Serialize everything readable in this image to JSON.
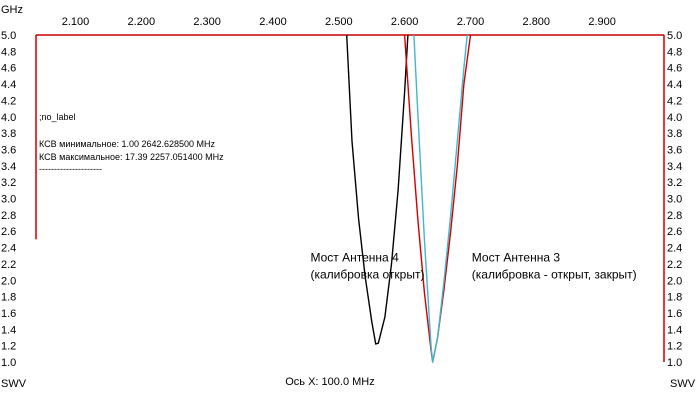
{
  "chart_data": {
    "type": "line",
    "x_unit": "GHz",
    "y_unit": "SWV",
    "xlim": [
      2.04,
      2.994
    ],
    "ylim": [
      1.0,
      5.0
    ],
    "x_ticks": [
      {
        "value": 2.1,
        "label": "2.100"
      },
      {
        "value": 2.2,
        "label": "2.200"
      },
      {
        "value": 2.3,
        "label": "2.300"
      },
      {
        "value": 2.4,
        "label": "2.400"
      },
      {
        "value": 2.5,
        "label": "2.500"
      },
      {
        "value": 2.6,
        "label": "2.600"
      },
      {
        "value": 2.7,
        "label": "2.700"
      },
      {
        "value": 2.8,
        "label": "2.800"
      },
      {
        "value": 2.9,
        "label": "2.900"
      }
    ],
    "y_ticks": [
      {
        "value": 1.0,
        "label": "1.0"
      },
      {
        "value": 1.2,
        "label": "1.2"
      },
      {
        "value": 1.4,
        "label": "1.4"
      },
      {
        "value": 1.6,
        "label": "1.6"
      },
      {
        "value": 1.8,
        "label": "1.8"
      },
      {
        "value": 2.0,
        "label": "2.0"
      },
      {
        "value": 2.2,
        "label": "2.2"
      },
      {
        "value": 2.4,
        "label": "2.4"
      },
      {
        "value": 2.6,
        "label": "2.6"
      },
      {
        "value": 2.8,
        "label": "2.8"
      },
      {
        "value": 3.0,
        "label": "3.0"
      },
      {
        "value": 3.2,
        "label": "3.2"
      },
      {
        "value": 3.4,
        "label": "3.4"
      },
      {
        "value": 3.6,
        "label": "3.6"
      },
      {
        "value": 3.8,
        "label": "3.8"
      },
      {
        "value": 4.0,
        "label": "4.0"
      },
      {
        "value": 4.2,
        "label": "4.2"
      },
      {
        "value": 4.4,
        "label": "4.4"
      },
      {
        "value": 4.6,
        "label": "4.6"
      },
      {
        "value": 4.8,
        "label": "4.8"
      },
      {
        "value": 5.0,
        "label": "5.0"
      }
    ],
    "xlabel": "Ось X: 100.0 MHz",
    "info_lines": [
      ";no_label",
      "КСВ минимальное: 1.00  2642.628500 MHz",
      "КСВ максимальное: 17.39  2257.051400 MHz",
      "---------------------"
    ],
    "series": [
      {
        "name": "Мост Антенна 4 (калибровка открыт)",
        "color": "#000000",
        "x": [
          2.512,
          2.52,
          2.53,
          2.54,
          2.55,
          2.556,
          2.56,
          2.57,
          2.58,
          2.59,
          2.6,
          2.605
        ],
        "y": [
          5.0,
          3.7,
          2.75,
          2.05,
          1.5,
          1.22,
          1.23,
          1.55,
          2.2,
          3.1,
          4.3,
          5.0
        ]
      },
      {
        "name": "Мост Антенна 3 (калибровка - открыт, закрыт)",
        "color": "#d00000",
        "x": [
          2.6,
          2.605,
          2.61,
          2.62,
          2.63,
          2.64,
          2.6426,
          2.65,
          2.66,
          2.67,
          2.68,
          2.69,
          2.7
        ],
        "y": [
          5.0,
          4.4,
          3.8,
          2.75,
          1.85,
          1.15,
          1.0,
          1.3,
          1.9,
          2.6,
          3.4,
          4.4,
          5.0
        ]
      },
      {
        "name": "Мост Антенна 3 (калибровка - открыт)",
        "color": "#3fb8cc",
        "x": [
          2.614,
          2.62,
          2.63,
          2.64,
          2.6426,
          2.65,
          2.66,
          2.67,
          2.68,
          2.69,
          2.695
        ],
        "y": [
          5.0,
          4.05,
          2.5,
          1.2,
          1.0,
          1.3,
          2.0,
          2.8,
          3.7,
          4.6,
          5.0
        ]
      }
    ],
    "annotations": [
      {
        "lines": [
          "Мост Антенна 4",
          "(калибровка открыт)"
        ],
        "x": 2.457,
        "y": 2.23
      },
      {
        "lines": [
          "Мост Антенна 3",
          "(калибровка - открыт, закрыт)"
        ],
        "x": 2.702,
        "y": 2.23
      }
    ]
  }
}
